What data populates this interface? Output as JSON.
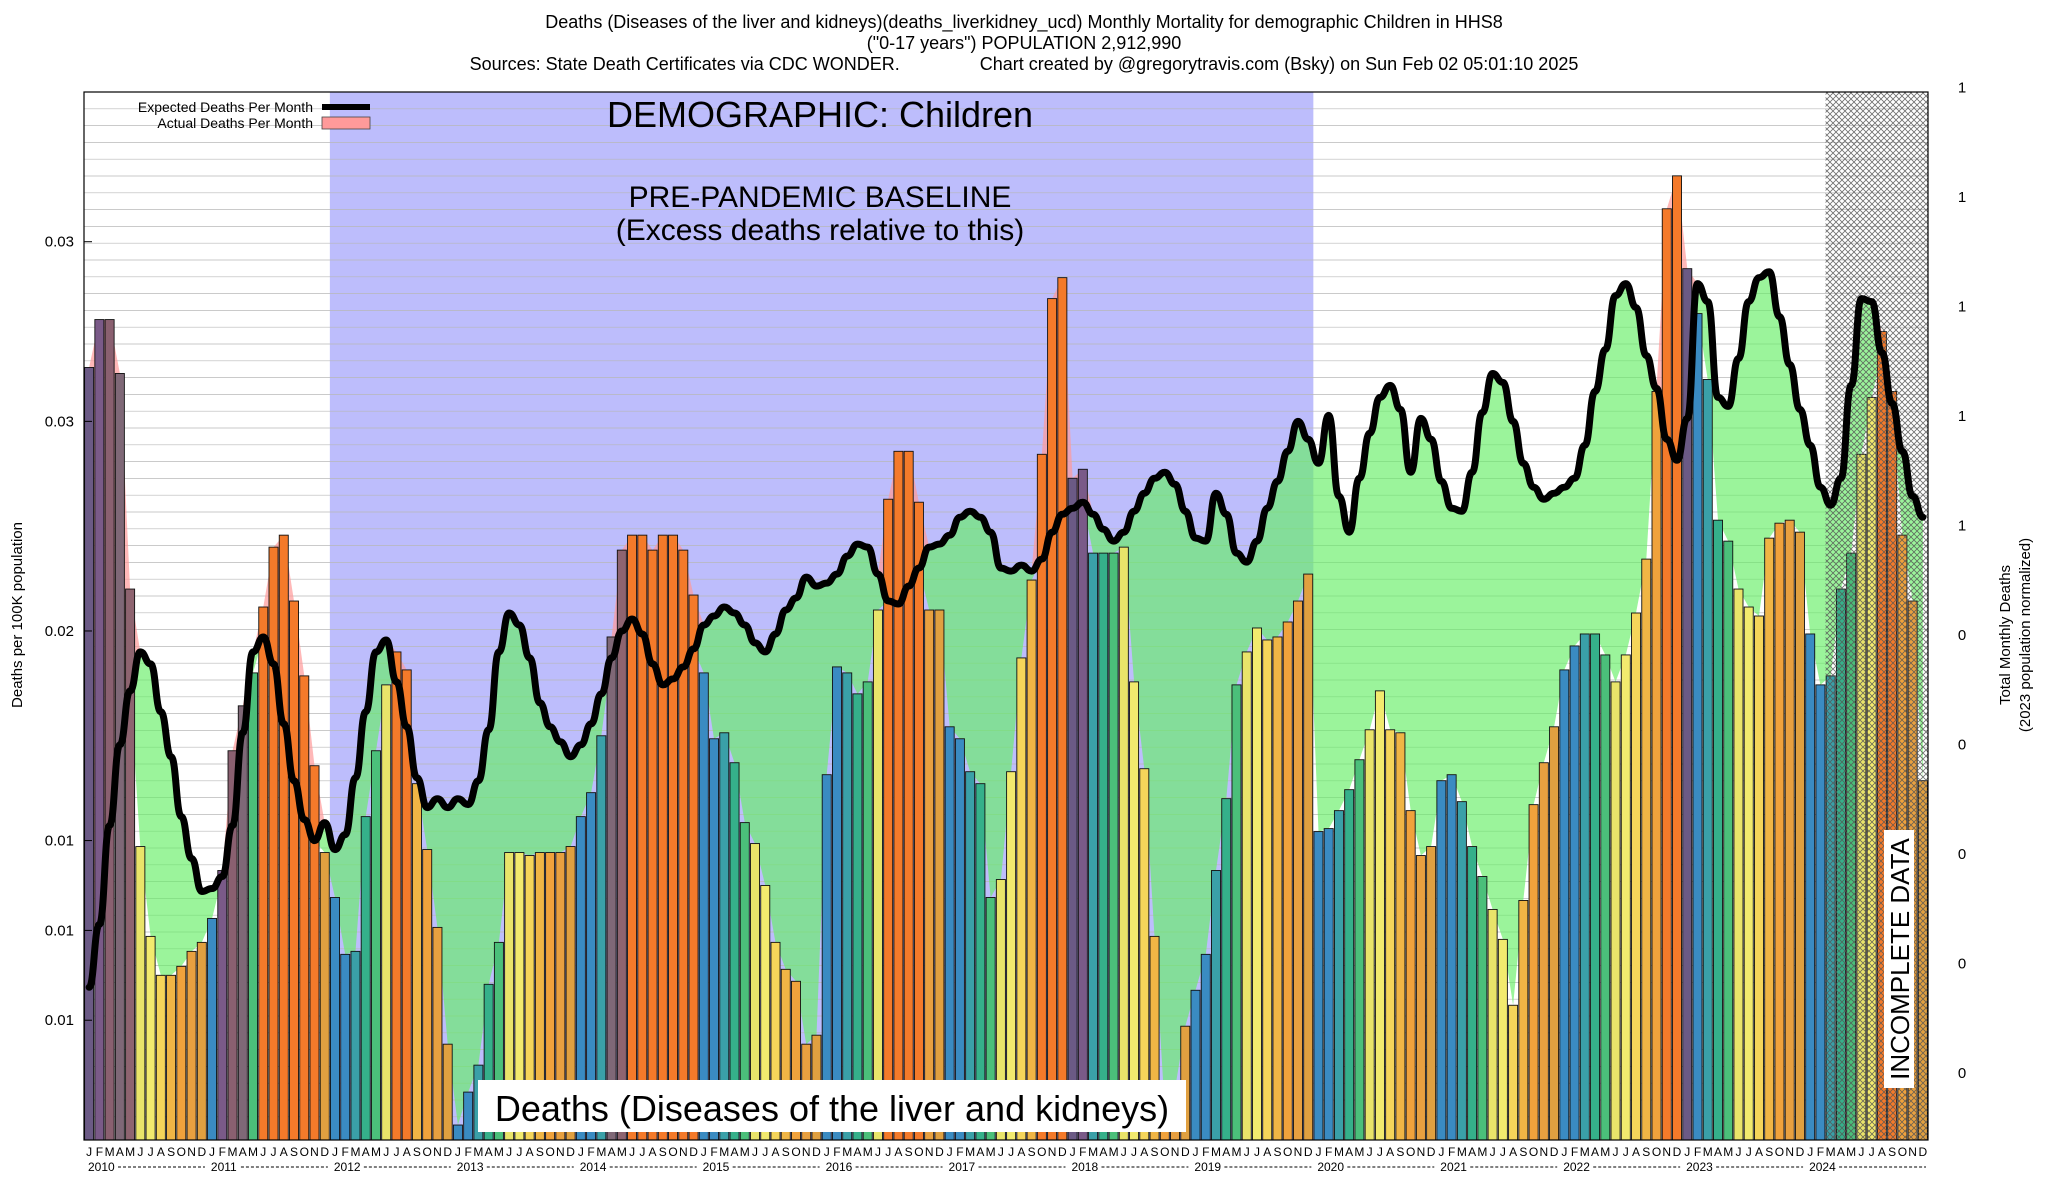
{
  "title": {
    "line1": "Deaths (Diseases of the liver and kidneys)(deaths_liverkidney_ucd) Monthly Mortality for demographic Children in HHS8",
    "line2": "(\"0-17 years\") POPULATION 2,912,990",
    "line3": "Sources: State Death Certificates via CDC WONDER.                Chart created by @gregorytravis.com (Bsky) on Sun Feb 02 05:01:10 2025"
  },
  "chart_data": {
    "type": "bar",
    "ylabel": "Deaths per 100K population",
    "y2label_line1": "Total Monthly Deaths",
    "y2label_line2": "(2023 population normalized)",
    "y_ticks": [
      "0.01",
      "0.01",
      "0.01",
      "0.02",
      "0.03",
      "0.03"
    ],
    "y_tick_values": [
      0.007,
      0.01,
      0.013,
      0.02,
      0.027,
      0.033
    ],
    "y2_ticks": [
      "0",
      "0",
      "0",
      "0",
      "0",
      "1",
      "1",
      "1",
      "1",
      "1"
    ],
    "ylim": [
      0.003,
      0.038
    ],
    "legend": {
      "position": "top-left",
      "entries": [
        "Expected Deaths Per Month",
        "Actual Deaths Per Month"
      ]
    },
    "annotations": {
      "demographic": "DEMOGRAPHIC: Children",
      "baseline_line1": "PRE-PANDEMIC BASELINE",
      "baseline_line2": "(Excess deaths relative to this)",
      "bottom_label": "Deaths (Diseases of the liver and kidneys)",
      "incomplete": "INCOMPLETE DATA"
    },
    "baseline_region": {
      "start": "2012-01",
      "end": "2019-12"
    },
    "incomplete_region": {
      "start": "2024-03",
      "end": "2024-12"
    },
    "x_month_letters": [
      "J",
      "F",
      "M",
      "A",
      "M",
      "J",
      "J",
      "A",
      "S",
      "O",
      "N",
      "D"
    ],
    "years": [
      "2010",
      "2011",
      "2012",
      "2013",
      "2014",
      "2015",
      "2016",
      "2017",
      "2018",
      "2019",
      "2020",
      "2021",
      "2022",
      "2023",
      "2024"
    ],
    "actual": [
      [
        0.0288,
        0.0304,
        0.0304,
        0.0286,
        0.0214,
        0.0128,
        0.0098,
        0.0085,
        0.0085,
        0.0088,
        0.0093,
        0.0096
      ],
      [
        0.0104,
        0.012,
        0.016,
        0.0175,
        0.0186,
        0.0208,
        0.0228,
        0.0232,
        0.021,
        0.0185,
        0.0155,
        0.0126
      ],
      [
        0.0111,
        0.0092,
        0.0093,
        0.0138,
        0.016,
        0.0182,
        0.0193,
        0.0187,
        0.0149,
        0.0127,
        0.0101,
        0.0062
      ],
      [
        0.0035,
        0.0046,
        0.0055,
        0.0082,
        0.0096,
        0.0126,
        0.0126,
        0.0125,
        0.0126,
        0.0126,
        0.0126,
        0.0128
      ],
      [
        0.0138,
        0.0146,
        0.0165,
        0.0198,
        0.0227,
        0.0232,
        0.0232,
        0.0227,
        0.0232,
        0.0232,
        0.0227,
        0.0212
      ],
      [
        0.0186,
        0.0164,
        0.0166,
        0.0156,
        0.0136,
        0.0129,
        0.0115,
        0.0096,
        0.0087,
        0.0083,
        0.0062,
        0.0065
      ],
      [
        0.0152,
        0.0188,
        0.0186,
        0.0179,
        0.0183,
        0.0207,
        0.0244,
        0.026,
        0.026,
        0.0243,
        0.0207,
        0.0207
      ],
      [
        0.0168,
        0.0164,
        0.0153,
        0.0149,
        0.0111,
        0.0117,
        0.0153,
        0.0191,
        0.0217,
        0.0259,
        0.0311,
        0.0318
      ],
      [
        0.0251,
        0.0254,
        0.0226,
        0.0226,
        0.0226,
        0.0228,
        0.0183,
        0.0154,
        0.0098,
        0.004,
        0.0047,
        0.0068
      ],
      [
        0.008,
        0.0092,
        0.012,
        0.0144,
        0.0182,
        0.0193,
        0.0201,
        0.0197,
        0.0198,
        0.0203,
        0.021,
        0.0219
      ],
      [
        0.0133,
        0.0134,
        0.014,
        0.0147,
        0.0157,
        0.0167,
        0.018,
        0.0167,
        0.0166,
        0.014,
        0.0125,
        0.0128
      ],
      [
        0.015,
        0.0152,
        0.0143,
        0.0128,
        0.0118,
        0.0107,
        0.0097,
        0.0075,
        0.011,
        0.0142,
        0.0156,
        0.0168
      ],
      [
        0.0187,
        0.0195,
        0.0199,
        0.0199,
        0.0192,
        0.0183,
        0.0192,
        0.0206,
        0.0224,
        0.028,
        0.0341,
        0.0352
      ],
      [
        0.0321,
        0.0306,
        0.0284,
        0.0237,
        0.023,
        0.0214,
        0.0208,
        0.0205,
        0.0231,
        0.0236,
        0.0237,
        0.0233
      ],
      [
        0.0199,
        0.0182,
        0.0185,
        0.0214,
        0.0226,
        0.0259,
        0.0278,
        0.03,
        0.028,
        0.0232,
        0.021,
        0.015
      ]
    ],
    "expected": [
      [
        0.0081,
        0.0102,
        0.0135,
        0.0162,
        0.018,
        0.0193,
        0.0189,
        0.0173,
        0.0158,
        0.0138,
        0.0124,
        0.0113
      ],
      [
        0.0114,
        0.0118,
        0.0135,
        0.0166,
        0.0193,
        0.0198,
        0.0189,
        0.0169,
        0.015,
        0.0137,
        0.013,
        0.0136
      ],
      [
        0.0127,
        0.0132,
        0.0151,
        0.0173,
        0.0193,
        0.0197,
        0.0183,
        0.0168,
        0.0151,
        0.0141,
        0.0144,
        0.0141
      ],
      [
        0.0144,
        0.0142,
        0.015,
        0.0167,
        0.0193,
        0.0206,
        0.0202,
        0.0191,
        0.0176,
        0.0168,
        0.0163,
        0.0158
      ],
      [
        0.0162,
        0.0169,
        0.0179,
        0.0191,
        0.02,
        0.0204,
        0.0199,
        0.0189,
        0.0182,
        0.0184,
        0.0188,
        0.0194
      ],
      [
        0.0202,
        0.0205,
        0.0208,
        0.0206,
        0.0202,
        0.0196,
        0.0193,
        0.0199,
        0.0207,
        0.0211,
        0.0218,
        0.0215
      ],
      [
        0.0216,
        0.0219,
        0.0225,
        0.0229,
        0.0228,
        0.0219,
        0.021,
        0.0209,
        0.0215,
        0.0221,
        0.0228,
        0.0229
      ],
      [
        0.0232,
        0.0238,
        0.024,
        0.0238,
        0.0233,
        0.0221,
        0.022,
        0.0222,
        0.022,
        0.0224,
        0.0233,
        0.0239
      ],
      [
        0.0241,
        0.0243,
        0.0239,
        0.0234,
        0.023,
        0.0233,
        0.024,
        0.0246,
        0.0251,
        0.0253,
        0.0249,
        0.024
      ],
      [
        0.0231,
        0.023,
        0.0246,
        0.0239,
        0.0226,
        0.0223,
        0.023,
        0.0241,
        0.025,
        0.026,
        0.027,
        0.0264
      ],
      [
        0.0256,
        0.0272,
        0.0245,
        0.0233,
        0.0251,
        0.0266,
        0.0278,
        0.0282,
        0.0274,
        0.0253,
        0.0271,
        0.0264
      ],
      [
        0.025,
        0.0241,
        0.024,
        0.0253,
        0.0273,
        0.0286,
        0.0283,
        0.027,
        0.0256,
        0.0248,
        0.0244,
        0.0246
      ],
      [
        0.0248,
        0.0251,
        0.0262,
        0.028,
        0.0294,
        0.0312,
        0.0316,
        0.0308,
        0.0292,
        0.0281,
        0.0264,
        0.0257
      ],
      [
        0.0271,
        0.0316,
        0.031,
        0.0278,
        0.0275,
        0.0291,
        0.031,
        0.0318,
        0.032,
        0.0305,
        0.0289,
        0.0274
      ],
      [
        0.0262,
        0.0248,
        0.0242,
        0.0251,
        0.0282,
        0.0311,
        0.031,
        0.0293,
        0.0276,
        0.026,
        0.0245,
        0.0238
      ]
    ]
  }
}
